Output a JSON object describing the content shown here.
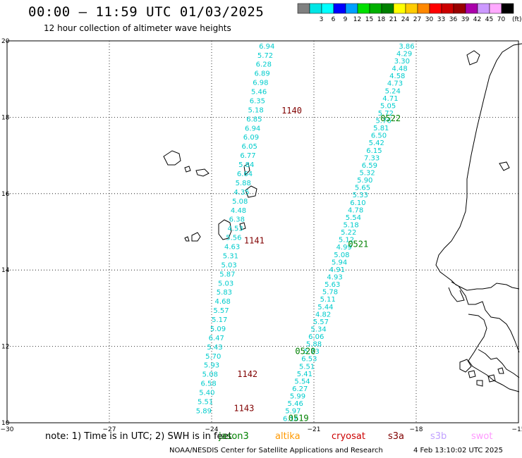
{
  "header": {
    "title": "00:00 – 11:59 UTC 01/03/2025",
    "subtitle": "12 hour collection of altimeter wave heights"
  },
  "legend": {
    "unit": "(ft)",
    "bins": [
      {
        "label": "",
        "color": "#808080"
      },
      {
        "label": "3",
        "color": "#00e5e5"
      },
      {
        "label": "6",
        "color": "#00ffff"
      },
      {
        "label": "9",
        "color": "#0000ff"
      },
      {
        "label": "12",
        "color": "#00a0ff"
      },
      {
        "label": "15",
        "color": "#00e000"
      },
      {
        "label": "18",
        "color": "#00b000"
      },
      {
        "label": "21",
        "color": "#008000"
      },
      {
        "label": "24",
        "color": "#ffff00"
      },
      {
        "label": "27",
        "color": "#ffcc00"
      },
      {
        "label": "30",
        "color": "#ff8800"
      },
      {
        "label": "33",
        "color": "#ff0000"
      },
      {
        "label": "36",
        "color": "#cc0000"
      },
      {
        "label": "39",
        "color": "#990000"
      },
      {
        "label": "42",
        "color": "#aa00aa"
      },
      {
        "label": "45",
        "color": "#cc99ff"
      },
      {
        "label": "70",
        "color": "#ffaaff"
      },
      {
        "label": "",
        "color": "#000000"
      }
    ]
  },
  "axes": {
    "lon_ticks": [
      "−30",
      "−27",
      "−24",
      "−21",
      "−18",
      "−15"
    ],
    "lat_ticks": [
      "20",
      "18",
      "16",
      "14",
      "12",
      "10"
    ],
    "lon_range": [
      -30,
      -15
    ],
    "lat_range": [
      10,
      20
    ]
  },
  "passes": [
    {
      "id": "1140",
      "label": "1140",
      "color": "#800000",
      "lon": -21.95,
      "lat": 18.1
    },
    {
      "id": "1141",
      "label": "1141",
      "color": "#800000",
      "lon": -23.05,
      "lat": 14.7
    },
    {
      "id": "1142",
      "label": "1142",
      "color": "#800000",
      "lon": -23.25,
      "lat": 11.2
    },
    {
      "id": "1143",
      "label": "1143",
      "color": "#800000",
      "lon": -23.35,
      "lat": 10.3
    },
    {
      "id": "0522",
      "label": "0522",
      "color": "#008000",
      "lon": -19.05,
      "lat": 17.9
    },
    {
      "id": "0521",
      "label": "0521",
      "color": "#008000",
      "lon": -20.0,
      "lat": 14.6
    },
    {
      "id": "0520",
      "label": "0520",
      "color": "#008000",
      "lon": -21.55,
      "lat": 11.8
    },
    {
      "id": "0519",
      "label": "0519",
      "color": "#008000",
      "lon": -21.75,
      "lat": 10.05
    }
  ],
  "tracks": [
    {
      "name": "west",
      "color": "#00cccc",
      "start": {
        "lon": -22.15,
        "lat": 19.8
      },
      "end": {
        "lon": -24.0,
        "lat": 10.25
      },
      "values": [
        "6.94",
        "5.72",
        "6.28",
        "6.89",
        "6.98",
        "5.46",
        "6.35",
        "5.18",
        "6.85",
        "6.94",
        "6.09",
        "6.05",
        "6.77",
        "5.84",
        "6.64",
        "5.88",
        "4.35",
        "5.08",
        "4.48",
        "6.38",
        "4.53",
        "5.56",
        "4.63",
        "5.31",
        "5.03",
        "5.87",
        "5.03",
        "5.83",
        "4.68",
        "5.57",
        "5.17",
        "5.09",
        "6.47",
        "5.43",
        "5.70",
        "5.93",
        "5.08",
        "6.58",
        "5.40",
        "5.51",
        "5.89"
      ]
    },
    {
      "name": "east",
      "color": "#00cccc",
      "start": {
        "lon": -18.05,
        "lat": 19.8
      },
      "end": {
        "lon": -21.45,
        "lat": 10.05
      },
      "values": [
        "3.86",
        "4.29",
        "3.30",
        "4.48",
        "4.58",
        "4.73",
        "5.24",
        "4.71",
        "5.05",
        "5.72",
        "5.76",
        "5.81",
        "6.50",
        "5.42",
        "6.15",
        "7.33",
        "6.59",
        "5.32",
        "5.90",
        "5.65",
        "5.33",
        "6.10",
        "4.78",
        "5.54",
        "5.18",
        "5.22",
        "5.12",
        "4.99",
        "5.08",
        "5.94",
        "4.91",
        "4.93",
        "5.63",
        "5.78",
        "5.11",
        "5.44",
        "4.82",
        "5.57",
        "5.34",
        "6.06",
        "5.88",
        "5.73",
        "6.53",
        "5.51",
        "5.41",
        "5.54",
        "6.27",
        "5.99",
        "5.46",
        "5.97",
        "6.16"
      ]
    }
  ],
  "footer": {
    "note": "note: 1) Time is in UTC; 2) SWH is in feet",
    "missions": [
      {
        "label": "jason3",
        "color": "#008000"
      },
      {
        "label": "altika",
        "color": "#ff9900"
      },
      {
        "label": "cryosat",
        "color": "#cc0000"
      },
      {
        "label": "s3a",
        "color": "#800000"
      },
      {
        "label": "s3b",
        "color": "#c0a0ff"
      },
      {
        "label": "swot",
        "color": "#ff99ff"
      }
    ],
    "credit": "NOAA/NESDIS Center for Satellite Applications and Research",
    "timestamp": "4 Feb 13:10:02 UTC 2025"
  }
}
